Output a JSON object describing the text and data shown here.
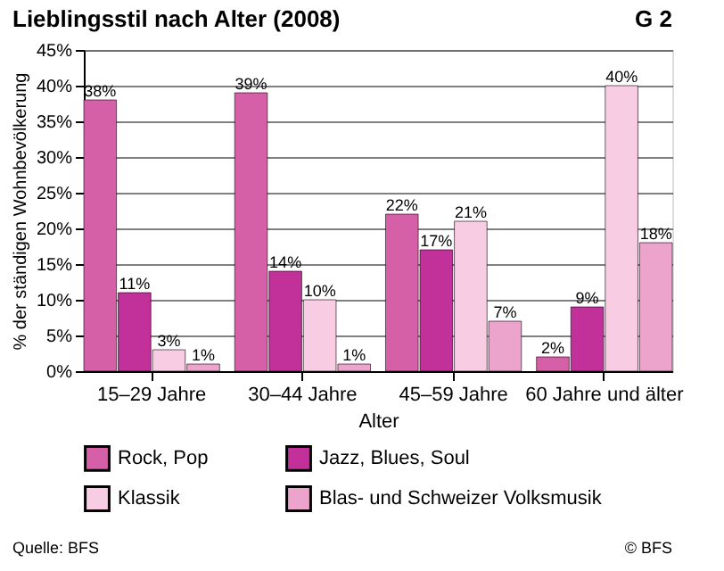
{
  "chart_data": {
    "type": "bar",
    "title": "Lieblingsstil nach Alter (2008)",
    "xlabel": "Alter",
    "ylabel": "% der ständigen Wohnbevölkerung",
    "categories": [
      "15–29 Jahre",
      "30–44 Jahre",
      "45–59 Jahre",
      "60 Jahre und älter"
    ],
    "series": [
      {
        "name": "Rock, Pop",
        "color": "#d660a8",
        "values": [
          38,
          39,
          22,
          2
        ],
        "value_labels": [
          "38%",
          "39%",
          "22%",
          "2%"
        ]
      },
      {
        "name": "Jazz, Blues, Soul",
        "color": "#c2309a",
        "values": [
          11,
          14,
          17,
          9
        ],
        "value_labels": [
          "11%",
          "14%",
          "17%",
          "9%"
        ]
      },
      {
        "name": "Klassik",
        "color": "#f8cce3",
        "values": [
          3,
          10,
          21,
          40
        ],
        "value_labels": [
          "3%",
          "10%",
          "21%",
          "40%"
        ]
      },
      {
        "name": "Blas- und Schweizer Volksmusik",
        "color": "#eca4cc",
        "values": [
          1,
          1,
          7,
          18
        ],
        "value_labels": [
          "1%",
          "1%",
          "7%",
          "18%"
        ]
      }
    ],
    "ylim": [
      0,
      45
    ],
    "yticks": [
      {
        "value": 0,
        "label": "0%"
      },
      {
        "value": 5,
        "label": "5%"
      },
      {
        "value": 10,
        "label": "10%"
      },
      {
        "value": 15,
        "label": "15%"
      },
      {
        "value": 20,
        "label": "20%"
      },
      {
        "value": 25,
        "label": "25%"
      },
      {
        "value": 30,
        "label": "30%"
      },
      {
        "value": 35,
        "label": "35%"
      },
      {
        "value": 40,
        "label": "40%"
      },
      {
        "value": 45,
        "label": "45%"
      }
    ],
    "grid": "y",
    "legend": "bottom",
    "annotations": [
      "G 2",
      "Quelle: BFS",
      "© BFS"
    ]
  }
}
